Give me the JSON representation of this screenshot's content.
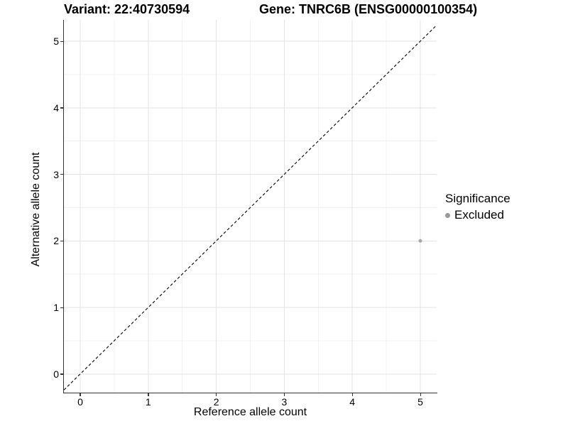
{
  "header": {
    "variant_label": "Variant: 22:40730594",
    "gene_label": "Gene: TNRC6B (ENSG00000100354)"
  },
  "legend": {
    "title": "Significance",
    "items": [
      {
        "label": "Excluded",
        "color": "#999999"
      }
    ]
  },
  "colors": {
    "axis_line": "#333333",
    "tick_mark": "#333333",
    "major_grid": "#e3e3e3",
    "minor_grid": "#f1f1f1",
    "identity_line": "#000000",
    "point_excluded": "#a8a8a8",
    "background": "#ffffff"
  },
  "chart_data": {
    "type": "scatter",
    "title": "Variant: 22:40730594    Gene: TNRC6B (ENSG00000100354)",
    "xlabel": "Reference allele count",
    "ylabel": "Alternative allele count",
    "xlim": [
      -0.24,
      5.24
    ],
    "ylim": [
      -0.28,
      5.32
    ],
    "xticks": [
      0,
      1,
      2,
      3,
      4,
      5
    ],
    "yticks": [
      0,
      1,
      2,
      3,
      4,
      5
    ],
    "grid": {
      "major": true,
      "minor": true
    },
    "identity_line": {
      "slope": 1,
      "intercept": 0,
      "style": "dashed"
    },
    "legend_position": "right",
    "series": [
      {
        "name": "Excluded",
        "color": "#a8a8a8",
        "points": [
          {
            "x": 5,
            "y": 2
          }
        ]
      }
    ]
  }
}
